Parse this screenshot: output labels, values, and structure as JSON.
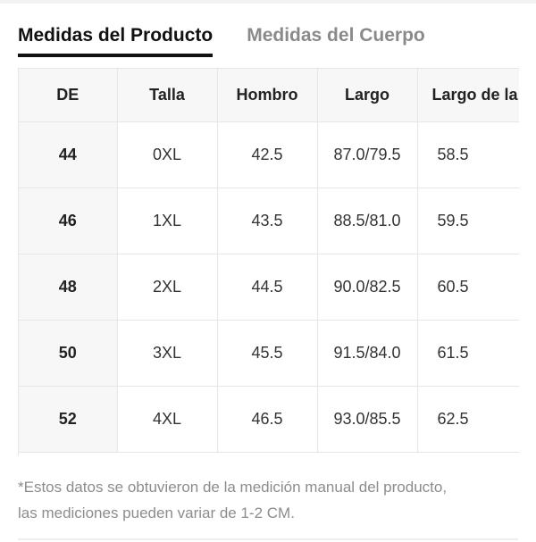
{
  "tabs": {
    "product": "Medidas del Producto",
    "body": "Medidas del Cuerpo"
  },
  "table": {
    "headers": [
      "DE",
      "Talla",
      "Hombro",
      "Largo",
      "Largo de la"
    ],
    "rows": [
      [
        "44",
        "0XL",
        "42.5",
        "87.0/79.5",
        "58.5"
      ],
      [
        "46",
        "1XL",
        "43.5",
        "88.5/81.0",
        "59.5"
      ],
      [
        "48",
        "2XL",
        "44.5",
        "90.0/82.5",
        "60.5"
      ],
      [
        "50",
        "3XL",
        "45.5",
        "91.5/84.0",
        "61.5"
      ],
      [
        "52",
        "4XL",
        "46.5",
        "93.0/85.5",
        "62.5"
      ]
    ]
  },
  "note": {
    "line1": "*Estos datos se obtuvieron de la medición manual del producto,",
    "line2": "las mediciones pueden variar de 1-2 CM."
  },
  "colors": {
    "active_tab": "#111111",
    "inactive_tab": "#8a8a8a",
    "header_bg": "#f7f7f7",
    "note_text": "#8c8c8c"
  }
}
